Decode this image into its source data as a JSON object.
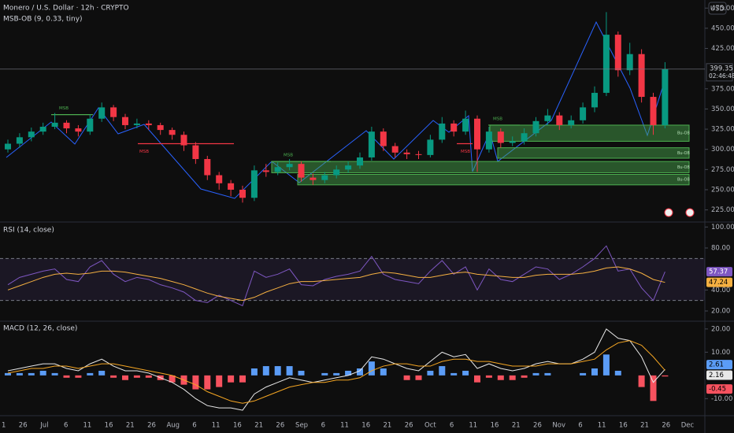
{
  "header": {
    "title": "Monero / U.S. Dollar · 12h · CRYPTO",
    "indicator": "MSB-OB (9, 0.33, tiny)",
    "currency": "USD",
    "countdown": "02:46:48"
  },
  "chart_data": [
    {
      "type": "candlestick",
      "title": "Monero / U.S. Dollar · 12h · CRYPTO",
      "up_color": "#089981",
      "down_color": "#f23645",
      "candles": [
        [
          300,
          312,
          296,
          307
        ],
        [
          307,
          320,
          302,
          315
        ],
        [
          315,
          327,
          310,
          322
        ],
        [
          322,
          333,
          318,
          328
        ],
        [
          328,
          345,
          325,
          333
        ],
        [
          333,
          336,
          320,
          326
        ],
        [
          326,
          330,
          316,
          322
        ],
        [
          322,
          343,
          318,
          338
        ],
        [
          338,
          358,
          334,
          352
        ],
        [
          352,
          355,
          335,
          340
        ],
        [
          340,
          344,
          325,
          330
        ],
        [
          330,
          338,
          326,
          332
        ],
        [
          332,
          336,
          324,
          330
        ],
        [
          330,
          333,
          318,
          324
        ],
        [
          324,
          327,
          312,
          318
        ],
        [
          318,
          322,
          298,
          305
        ],
        [
          305,
          309,
          282,
          288
        ],
        [
          288,
          292,
          262,
          268
        ],
        [
          268,
          272,
          250,
          258
        ],
        [
          258,
          262,
          242,
          250
        ],
        [
          250,
          255,
          234,
          240
        ],
        [
          240,
          280,
          236,
          274
        ],
        [
          274,
          282,
          266,
          272
        ],
        [
          272,
          284,
          268,
          278
        ],
        [
          278,
          288,
          274,
          282
        ],
        [
          282,
          285,
          260,
          265
        ],
        [
          265,
          270,
          256,
          262
        ],
        [
          262,
          272,
          258,
          268
        ],
        [
          268,
          280,
          264,
          275
        ],
        [
          275,
          285,
          271,
          280
        ],
        [
          280,
          296,
          276,
          290
        ],
        [
          290,
          328,
          286,
          322
        ],
        [
          322,
          326,
          298,
          304
        ],
        [
          304,
          308,
          290,
          296
        ],
        [
          296,
          300,
          288,
          294
        ],
        [
          294,
          298,
          288,
          293
        ],
        [
          293,
          318,
          290,
          312
        ],
        [
          312,
          340,
          308,
          332
        ],
        [
          332,
          336,
          316,
          322
        ],
        [
          322,
          348,
          318,
          338
        ],
        [
          338,
          342,
          272,
          300
        ],
        [
          300,
          328,
          296,
          322
        ],
        [
          322,
          326,
          302,
          308
        ],
        [
          308,
          316,
          304,
          310
        ],
        [
          310,
          326,
          306,
          320
        ],
        [
          320,
          340,
          316,
          335
        ],
        [
          335,
          350,
          330,
          342
        ],
        [
          342,
          346,
          324,
          330
        ],
        [
          330,
          342,
          326,
          336
        ],
        [
          336,
          358,
          332,
          352
        ],
        [
          352,
          378,
          346,
          370
        ],
        [
          370,
          470,
          366,
          442
        ],
        [
          442,
          446,
          390,
          398
        ],
        [
          398,
          432,
          392,
          418
        ],
        [
          418,
          424,
          358,
          365
        ],
        [
          365,
          370,
          318,
          330
        ],
        [
          330,
          408,
          326,
          399.35
        ]
      ],
      "zones": [
        {
          "label": "Bu-OB",
          "top": 330,
          "bottom": 310
        },
        {
          "label": "Bu-OB",
          "top": 302,
          "bottom": 289
        },
        {
          "label": "Bu-OB",
          "top": 285,
          "bottom": 271
        },
        {
          "label": "Bu-OB",
          "top": 269,
          "bottom": 256
        }
      ],
      "msb": [
        {
          "label": "MSB",
          "level": 343,
          "color": "#4caf50"
        },
        {
          "label": "MSB",
          "level": 307,
          "color": "#f23645"
        },
        {
          "label": "MSB",
          "level": 285,
          "color": "#4caf50"
        },
        {
          "label": "MSB",
          "level": 307,
          "color": "#f23645"
        },
        {
          "label": "MSB",
          "level": 330,
          "color": "#4caf50"
        }
      ],
      "ylim": [
        210,
        485
      ],
      "yticks": [
        {
          "value": 475,
          "label": "475.00"
        },
        {
          "value": 450,
          "label": "450.00"
        },
        {
          "value": 425,
          "label": "425.00"
        },
        {
          "value": 375,
          "label": "375.00"
        },
        {
          "value": 350,
          "label": "350.00"
        },
        {
          "value": 325,
          "label": "325.00"
        },
        {
          "value": 300,
          "label": "300.00"
        },
        {
          "value": 275,
          "label": "275.00"
        },
        {
          "value": 250,
          "label": "250.00"
        },
        {
          "value": 225,
          "label": "225.00"
        }
      ],
      "grid": false
    },
    {
      "type": "line",
      "title": "RSI (14, close)",
      "bands": [
        70,
        30
      ],
      "series": [
        {
          "name": "RSI",
          "color": "#7e57c2",
          "values": [
            45,
            52,
            55,
            58,
            60,
            50,
            48,
            62,
            68,
            55,
            48,
            52,
            50,
            45,
            42,
            38,
            30,
            28,
            35,
            30,
            25,
            58,
            52,
            55,
            60,
            45,
            44,
            50,
            53,
            55,
            58,
            72,
            55,
            50,
            48,
            46,
            58,
            68,
            55,
            62,
            40,
            60,
            50,
            48,
            55,
            62,
            60,
            50,
            55,
            62,
            70,
            82,
            58,
            60,
            42,
            30,
            57.37
          ]
        },
        {
          "name": "RSI-based MA",
          "color": "#f5b041",
          "values": [
            40,
            44,
            48,
            52,
            55,
            56,
            55,
            56,
            58,
            58,
            57,
            55,
            53,
            51,
            48,
            45,
            41,
            37,
            34,
            32,
            30,
            33,
            38,
            42,
            46,
            48,
            48,
            49,
            50,
            51,
            52,
            55,
            57,
            56,
            54,
            52,
            52,
            54,
            56,
            57,
            55,
            54,
            53,
            52,
            52,
            54,
            55,
            55,
            55,
            56,
            58,
            61,
            62,
            60,
            56,
            50,
            47.24
          ]
        }
      ],
      "ylim": [
        11,
        104
      ],
      "yticks": [
        {
          "value": 100,
          "label": "100.00"
        },
        {
          "value": 80,
          "label": "80.00"
        },
        {
          "value": 40,
          "label": "40.00"
        },
        {
          "value": 20,
          "label": "20.00"
        }
      ]
    },
    {
      "type": "macd",
      "title": "MACD (12, 26, close)",
      "pos_color": "#5b9cf6",
      "neg_color": "#f7525f",
      "histogram": [
        1,
        1,
        1,
        2,
        1,
        -1,
        -1,
        1,
        2,
        -1,
        -2,
        -1,
        -1,
        -2,
        -3,
        -4,
        -6,
        -6,
        -5,
        -3,
        -3,
        3,
        4,
        4,
        4,
        2,
        0,
        1,
        1,
        2,
        3,
        6,
        3,
        0,
        -2,
        -2,
        2,
        4,
        1,
        2,
        -3,
        -1,
        -2,
        -2,
        -1,
        1,
        1,
        0,
        0,
        1,
        3,
        9,
        2,
        0,
        -5,
        -11,
        -0.45
      ],
      "series": [
        {
          "name": "MACD",
          "color": "#e8e8e8",
          "values": [
            2,
            3,
            4,
            5,
            5,
            3,
            2,
            5,
            7,
            4,
            2,
            2,
            1,
            -1,
            -3,
            -6,
            -10,
            -13,
            -14,
            -14,
            -15,
            -8,
            -5,
            -3,
            -1,
            -2,
            -3,
            -2,
            -1,
            0,
            2,
            8,
            7,
            5,
            3,
            2,
            6,
            10,
            8,
            9,
            3,
            5,
            3,
            2,
            3,
            5,
            6,
            5,
            5,
            7,
            10,
            20,
            16,
            15,
            8,
            -3,
            2.61
          ]
        },
        {
          "name": "Signal",
          "color": "#f5a623",
          "values": [
            1,
            2,
            3,
            3,
            4,
            4,
            3,
            4,
            5,
            5,
            4,
            3,
            2,
            1,
            0,
            -2,
            -4,
            -7,
            -9,
            -11,
            -12,
            -11,
            -9,
            -7,
            -5,
            -4,
            -3,
            -3,
            -2,
            -2,
            -1,
            2,
            4,
            5,
            5,
            4,
            4,
            6,
            7,
            7,
            6,
            6,
            5,
            4,
            4,
            4,
            5,
            5,
            5,
            6,
            7,
            11,
            14,
            15,
            13,
            8,
            2.16
          ]
        }
      ],
      "ylim": [
        -17,
        23
      ],
      "yticks": [
        {
          "value": 20,
          "label": "20.00"
        },
        {
          "value": 10,
          "label": "10.00"
        },
        {
          "value": -10,
          "label": "-10.00"
        }
      ],
      "x_labels": [
        "1",
        "26",
        "Jul",
        "6",
        "11",
        "16",
        "21",
        "26",
        "Aug",
        "6",
        "11",
        "16",
        "21",
        "26",
        "Sep",
        "6",
        "11",
        "16",
        "21",
        "26",
        "Oct",
        "6",
        "11",
        "16",
        "21",
        "26",
        "Nov",
        "6",
        "11",
        "16",
        "21",
        "26",
        "Dec"
      ]
    }
  ]
}
